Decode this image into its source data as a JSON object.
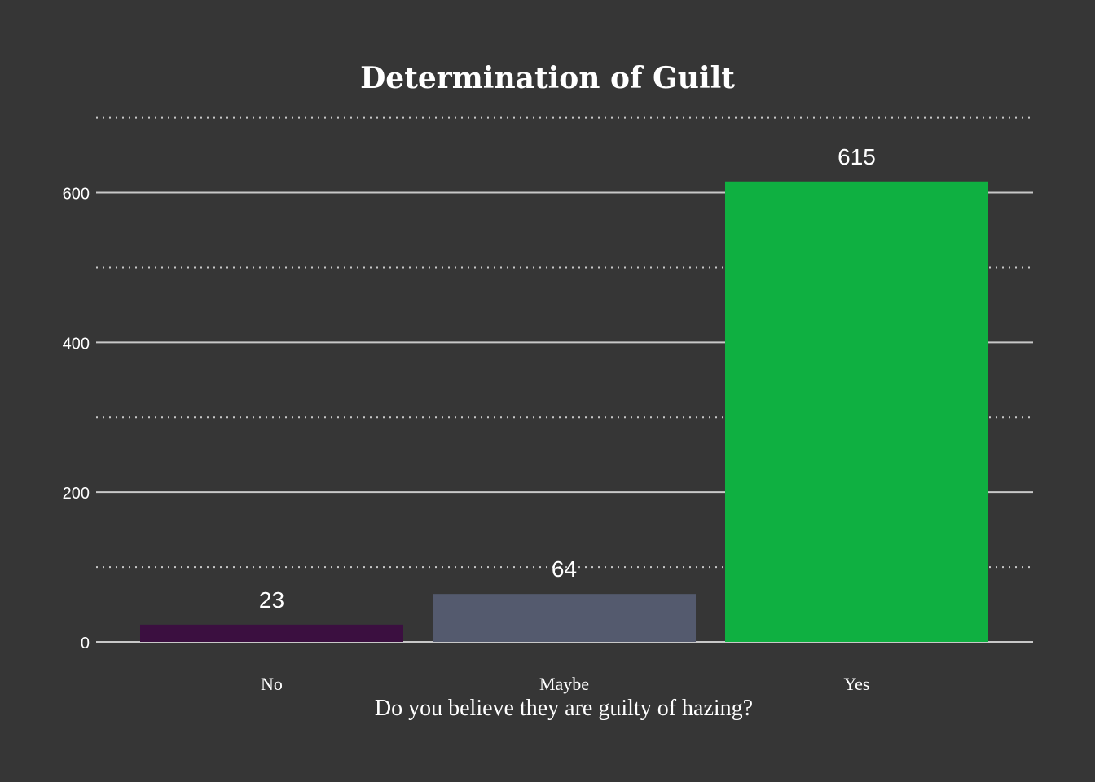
{
  "chart_data": {
    "type": "bar",
    "title": "Determination of Guilt",
    "xlabel": "Do you believe they are guilty of hazing?",
    "ylabel": "",
    "categories": [
      "No",
      "Maybe",
      "Yes"
    ],
    "values": [
      23,
      64,
      615
    ],
    "value_labels": [
      "23",
      "64",
      "615"
    ],
    "colors": [
      "#3b0f40",
      "#545a6e",
      "#0fb041"
    ],
    "ylim": [
      0,
      700
    ],
    "yticks": [
      0,
      200,
      400,
      600
    ],
    "ytick_labels": [
      "0",
      "200",
      "400",
      "600"
    ],
    "minor_gridlines": [
      100,
      300,
      500,
      700
    ],
    "grid": true,
    "legend": "none"
  },
  "colors": {
    "background": "#363636",
    "major_grid": "#c8c8c8",
    "minor_grid": "#c8c8c8",
    "text": "#ffffff"
  }
}
